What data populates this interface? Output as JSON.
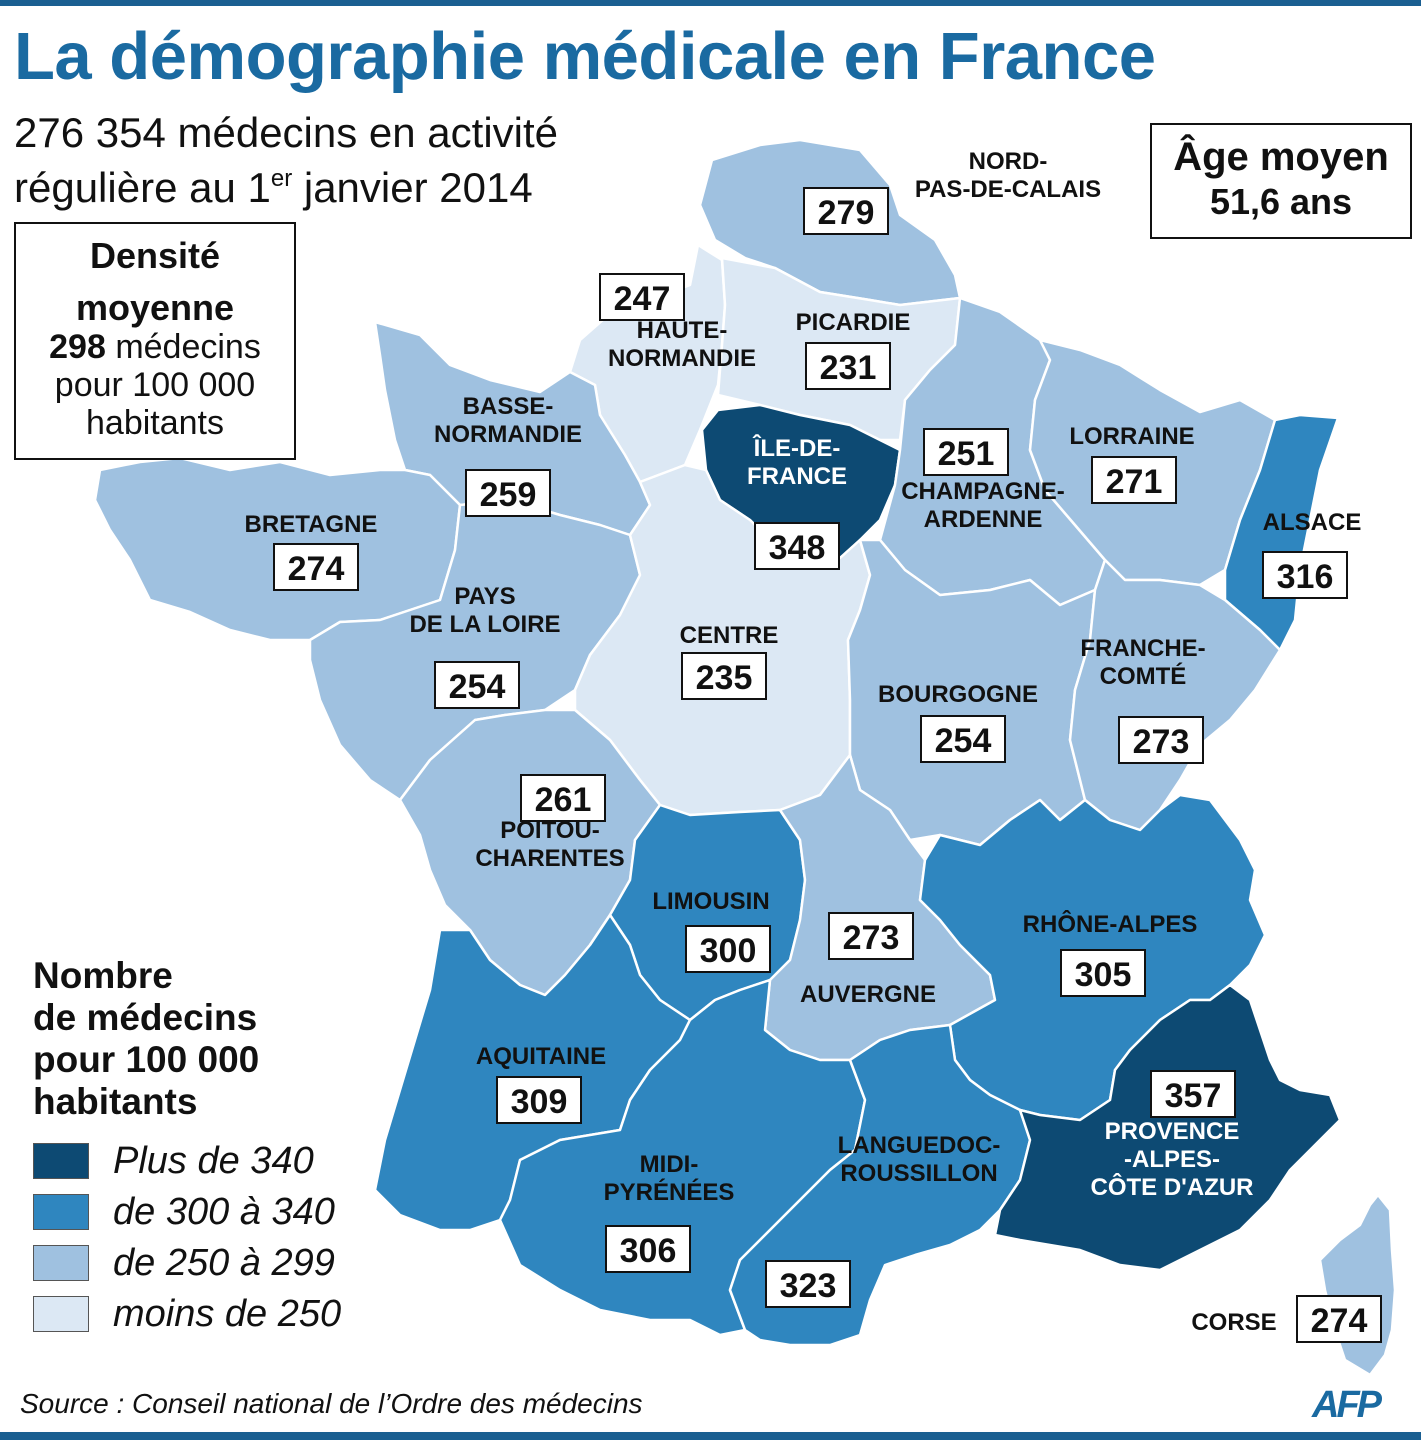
{
  "title": "La démographie médicale en France",
  "subtitle": {
    "line1": "276 354 médecins en activité",
    "line2_prefix": "régulière au 1",
    "line2_sup": "er",
    "line2_suffix": " janvier 2014"
  },
  "density_box": {
    "heading_line1": "Densité",
    "heading_line2": "moyenne",
    "value": "298",
    "value_suffix": " médecins",
    "line3": "pour 100 000",
    "line4": "habitants"
  },
  "age_box": {
    "heading": "Âge moyen",
    "value": "51,6 ans"
  },
  "legend": {
    "title_lines": [
      "Nombre",
      "de médecins",
      "pour 100 000",
      "habitants"
    ],
    "items": [
      {
        "label": "Plus de 340",
        "color": "#0d4a73"
      },
      {
        "label": "de 300 à 340",
        "color": "#2f86bf"
      },
      {
        "label": "de 250 à 299",
        "color": "#9fc1e0"
      },
      {
        "label": "moins de 250",
        "color": "#dce8f4"
      }
    ]
  },
  "regions": [
    {
      "name": "NORD-PAS-DE-CALAIS",
      "label_lines": [
        "NORD-",
        "PAS-DE-CALAIS"
      ],
      "value": "279",
      "class": "de 250 à 299"
    },
    {
      "name": "HAUTE-NORMANDIE",
      "label_lines": [
        "HAUTE-",
        "NORMANDIE"
      ],
      "value": "247",
      "class": "moins de 250"
    },
    {
      "name": "PICARDIE",
      "label_lines": [
        "PICARDIE"
      ],
      "value": "231",
      "class": "moins de 250"
    },
    {
      "name": "BASSE-NORMANDIE",
      "label_lines": [
        "BASSE-",
        "NORMANDIE"
      ],
      "value": "259",
      "class": "de 250 à 299"
    },
    {
      "name": "ÎLE-DE-FRANCE",
      "label_lines": [
        "ÎLE-DE-",
        "FRANCE"
      ],
      "value": "348",
      "class": "Plus de 340"
    },
    {
      "name": "CHAMPAGNE-ARDENNE",
      "label_lines": [
        "CHAMPAGNE-",
        "ARDENNE"
      ],
      "value": "251",
      "class": "de 250 à 299"
    },
    {
      "name": "LORRAINE",
      "label_lines": [
        "LORRAINE"
      ],
      "value": "271",
      "class": "de 250 à 299"
    },
    {
      "name": "ALSACE",
      "label_lines": [
        "ALSACE"
      ],
      "value": "316",
      "class": "de 300 à 340"
    },
    {
      "name": "BRETAGNE",
      "label_lines": [
        "BRETAGNE"
      ],
      "value": "274",
      "class": "de 250 à 299"
    },
    {
      "name": "PAYS DE LA LOIRE",
      "label_lines": [
        "PAYS",
        "DE LA LOIRE"
      ],
      "value": "254",
      "class": "de 250 à 299"
    },
    {
      "name": "CENTRE",
      "label_lines": [
        "CENTRE"
      ],
      "value": "235",
      "class": "moins de 250"
    },
    {
      "name": "BOURGOGNE",
      "label_lines": [
        "BOURGOGNE"
      ],
      "value": "254",
      "class": "de 250 à 299"
    },
    {
      "name": "FRANCHE-COMTÉ",
      "label_lines": [
        "FRANCHE-",
        "COMTÉ"
      ],
      "value": "273",
      "class": "de 250 à 299"
    },
    {
      "name": "POITOU-CHARENTES",
      "label_lines": [
        "POITOU-",
        "CHARENTES"
      ],
      "value": "261",
      "class": "de 250 à 299"
    },
    {
      "name": "LIMOUSIN",
      "label_lines": [
        "LIMOUSIN"
      ],
      "value": "300",
      "class": "de 300 à 340"
    },
    {
      "name": "AUVERGNE",
      "label_lines": [
        "AUVERGNE"
      ],
      "value": "273",
      "class": "de 250 à 299"
    },
    {
      "name": "RHÔNE-ALPES",
      "label_lines": [
        "RHÔNE-ALPES"
      ],
      "value": "305",
      "class": "de 300 à 340"
    },
    {
      "name": "AQUITAINE",
      "label_lines": [
        "AQUITAINE"
      ],
      "value": "309",
      "class": "de 300 à 340"
    },
    {
      "name": "MIDI-PYRÉNÉES",
      "label_lines": [
        "MIDI-",
        "PYRÉNÉES"
      ],
      "value": "306",
      "class": "de 300 à 340"
    },
    {
      "name": "LANGUEDOC-ROUSSILLON",
      "label_lines": [
        "LANGUEDOC-",
        "ROUSSILLON"
      ],
      "value": "323",
      "class": "de 300 à 340"
    },
    {
      "name": "PROVENCE-ALPES-CÔTE D'AZUR",
      "label_lines": [
        "PROVENCE",
        "-ALPES-",
        "CÔTE D'AZUR"
      ],
      "value": "357",
      "class": "Plus de 340"
    },
    {
      "name": "CORSE",
      "label_lines": [
        "CORSE"
      ],
      "value": "274",
      "class": "de 250 à 299"
    }
  ],
  "source": "Source : Conseil national de l’Ordre des médecins",
  "logo_text": "AFP"
}
